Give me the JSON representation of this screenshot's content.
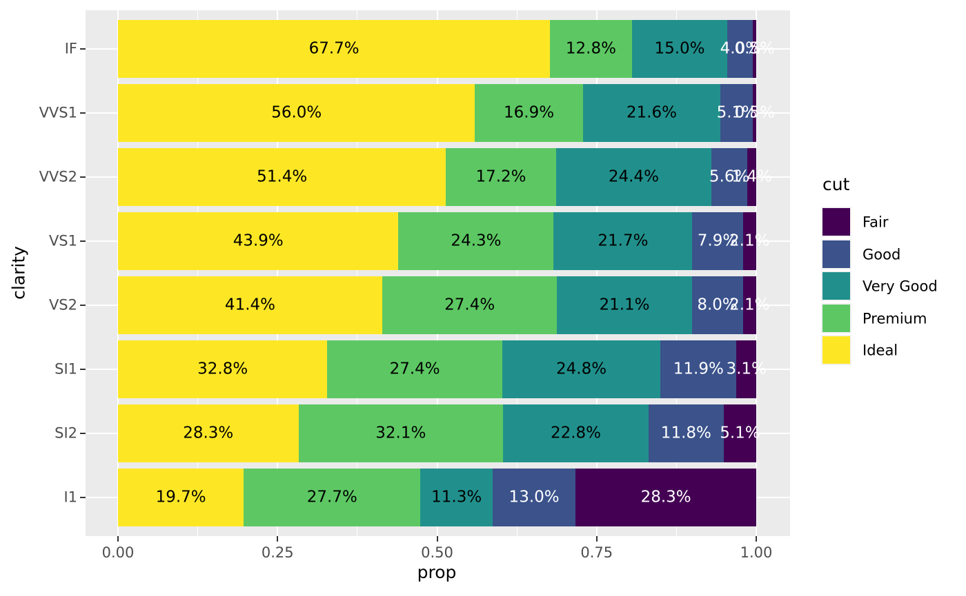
{
  "figure": {
    "background": "#FFFFFF",
    "panel_background": "#EBEBEB",
    "gridline_color": "#FFFFFF",
    "tick_mark_color": "#333333",
    "tick_label_color": "#4D4D4D"
  },
  "chart_data": {
    "type": "bar",
    "orientation": "horizontal",
    "stacking": "fill-100-percent",
    "title": "",
    "xlabel": "prop",
    "ylabel": "clarity",
    "xlim": [
      0,
      1
    ],
    "grid": true,
    "x_ticks": [
      {
        "label": "0.00",
        "value": 0.0
      },
      {
        "label": "0.25",
        "value": 0.25
      },
      {
        "label": "0.50",
        "value": 0.5
      },
      {
        "label": "0.75",
        "value": 0.75
      },
      {
        "label": "1.00",
        "value": 1.0
      }
    ],
    "x_minor_gridlines": [
      0.125,
      0.375,
      0.625,
      0.875
    ],
    "categories": [
      "IF",
      "VVS1",
      "VVS2",
      "VS1",
      "VS2",
      "SI1",
      "SI2",
      "I1"
    ],
    "series": [
      {
        "name": "Ideal",
        "color": "#FDE725",
        "label_color": "#000000",
        "values": [
          67.7,
          56.0,
          51.4,
          43.9,
          41.4,
          32.8,
          28.3,
          19.7
        ],
        "labels": [
          "67.7%",
          "56.0%",
          "51.4%",
          "43.9%",
          "41.4%",
          "32.8%",
          "28.3%",
          "19.7%"
        ]
      },
      {
        "name": "Premium",
        "color": "#5DC863",
        "label_color": "#000000",
        "values": [
          12.8,
          16.9,
          17.2,
          24.3,
          27.4,
          27.4,
          32.1,
          27.7
        ],
        "labels": [
          "12.8%",
          "16.9%",
          "17.2%",
          "24.3%",
          "27.4%",
          "27.4%",
          "32.1%",
          "27.7%"
        ]
      },
      {
        "name": "Very Good",
        "color": "#21908C",
        "label_color": "#000000",
        "values": [
          15.0,
          21.6,
          24.4,
          21.7,
          21.1,
          24.8,
          22.8,
          11.3
        ],
        "labels": [
          "15.0%",
          "21.6%",
          "24.4%",
          "21.7%",
          "21.1%",
          "24.8%",
          "22.8%",
          "11.3%"
        ]
      },
      {
        "name": "Good",
        "color": "#3B528B",
        "label_color": "#FFFFFF",
        "values": [
          4.0,
          5.1,
          5.6,
          7.9,
          8.0,
          11.9,
          11.8,
          13.0
        ],
        "labels": [
          "4.0%",
          "5.1%",
          "5.6%",
          "7.9%",
          "8.0%",
          "11.9%",
          "11.8%",
          "13.0%"
        ]
      },
      {
        "name": "Fair",
        "color": "#440154",
        "label_color": "#FFFFFF",
        "values": [
          0.5,
          0.5,
          1.4,
          2.1,
          2.1,
          3.1,
          5.1,
          28.3
        ],
        "labels": [
          "0.5%",
          "0.5%",
          "1.4%",
          "2.1%",
          "2.1%",
          "3.1%",
          "5.1%",
          "28.3%"
        ]
      }
    ],
    "legend": {
      "title": "cut",
      "position": "right",
      "entries": [
        {
          "label": "Fair",
          "color": "#440154"
        },
        {
          "label": "Good",
          "color": "#3B528B"
        },
        {
          "label": "Very Good",
          "color": "#21908C"
        },
        {
          "label": "Premium",
          "color": "#5DC863"
        },
        {
          "label": "Ideal",
          "color": "#FDE725"
        }
      ]
    }
  }
}
